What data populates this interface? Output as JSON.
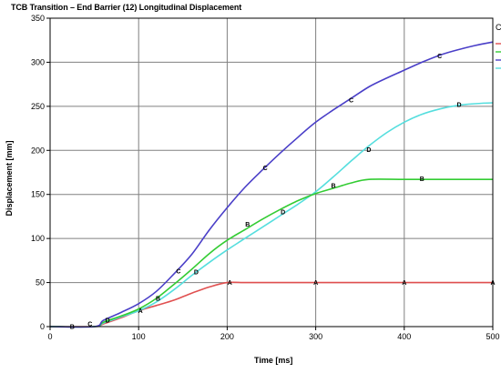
{
  "chart_data": {
    "type": "line",
    "title": "TCB Transition – End Barrier (12) Longitudinal Displacement",
    "xlabel": "Time [ms]",
    "ylabel": "Displacement [mm]",
    "xlim": [
      0,
      500
    ],
    "ylim": [
      0,
      350
    ],
    "xticks": [
      0,
      100,
      200,
      300,
      400,
      500
    ],
    "yticks": [
      0,
      50,
      100,
      150,
      200,
      250,
      300,
      350
    ],
    "grid": true,
    "legend_position": "right",
    "legend_visible_text": "C",
    "series": [
      {
        "marker": "A",
        "color": "#e05050",
        "x": [
          0,
          50,
          60,
          80,
          100,
          120,
          140,
          160,
          180,
          200,
          220,
          240,
          300,
          400,
          500
        ],
        "y": [
          0,
          0,
          3,
          10,
          18,
          24,
          30,
          38,
          45,
          50,
          50,
          50,
          50,
          50,
          50
        ],
        "marker_labels": [
          {
            "x": 102,
            "y": 18
          },
          {
            "x": 203,
            "y": 50
          },
          {
            "x": 300,
            "y": 50
          },
          {
            "x": 400,
            "y": 50
          },
          {
            "x": 500,
            "y": 50
          }
        ]
      },
      {
        "marker": "B",
        "color": "#33cc33",
        "x": [
          0,
          50,
          60,
          80,
          100,
          120,
          140,
          160,
          180,
          200,
          220,
          240,
          260,
          280,
          300,
          320,
          340,
          360,
          400,
          440,
          500
        ],
        "y": [
          0,
          0,
          5,
          12,
          20,
          32,
          48,
          65,
          83,
          98,
          110,
          122,
          133,
          143,
          151,
          157,
          163,
          167,
          167,
          167,
          167
        ],
        "marker_labels": [
          {
            "x": 25,
            "y": 0
          },
          {
            "x": 122,
            "y": 32
          },
          {
            "x": 223,
            "y": 116
          },
          {
            "x": 320,
            "y": 160
          },
          {
            "x": 420,
            "y": 168
          }
        ]
      },
      {
        "marker": "C",
        "color": "#4a3fc8",
        "x": [
          0,
          50,
          60,
          80,
          100,
          120,
          140,
          160,
          180,
          200,
          220,
          240,
          260,
          280,
          300,
          320,
          340,
          360,
          380,
          400,
          420,
          440,
          460,
          480,
          500
        ],
        "y": [
          0,
          0,
          7,
          16,
          26,
          40,
          60,
          82,
          110,
          135,
          158,
          178,
          197,
          215,
          232,
          246,
          259,
          272,
          282,
          291,
          300,
          308,
          314,
          319,
          323
        ],
        "marker_labels": [
          {
            "x": 45,
            "y": 3
          },
          {
            "x": 145,
            "y": 63
          },
          {
            "x": 243,
            "y": 180
          },
          {
            "x": 340,
            "y": 257
          },
          {
            "x": 440,
            "y": 307
          }
        ]
      },
      {
        "marker": "D",
        "color": "#55dede",
        "x": [
          0,
          50,
          60,
          80,
          100,
          120,
          140,
          160,
          180,
          200,
          220,
          240,
          260,
          280,
          300,
          320,
          340,
          360,
          380,
          400,
          420,
          440,
          460,
          480,
          500
        ],
        "y": [
          0,
          0,
          4,
          11,
          18,
          28,
          42,
          58,
          73,
          87,
          100,
          113,
          126,
          139,
          153,
          170,
          188,
          205,
          220,
          232,
          241,
          247,
          251,
          253,
          254
        ],
        "marker_labels": [
          {
            "x": 65,
            "y": 7
          },
          {
            "x": 165,
            "y": 62
          },
          {
            "x": 263,
            "y": 130
          },
          {
            "x": 360,
            "y": 201
          },
          {
            "x": 462,
            "y": 252
          }
        ]
      }
    ]
  }
}
